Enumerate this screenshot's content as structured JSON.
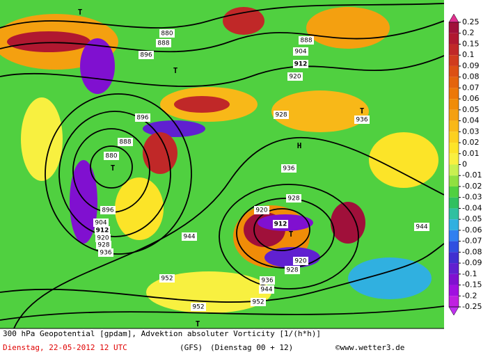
{
  "colorbar": {
    "levels": [
      0.25,
      0.2,
      0.15,
      0.1,
      0.09,
      0.08,
      0.07,
      0.06,
      0.05,
      0.04,
      0.03,
      0.02,
      0.01,
      0,
      -0.01,
      -0.02,
      -0.03,
      -0.04,
      -0.05,
      -0.06,
      -0.07,
      -0.08,
      -0.09,
      -0.1,
      -0.15,
      -0.2,
      -0.25
    ],
    "colors": [
      "#a0103a",
      "#b01830",
      "#c02828",
      "#d03c1e",
      "#dc5014",
      "#e4640c",
      "#ec7808",
      "#f08c08",
      "#f4a010",
      "#f8b818",
      "#fcd020",
      "#fce428",
      "#f8f040",
      "#c8f050",
      "#90e040",
      "#50d040",
      "#30c060",
      "#30c0a0",
      "#30b0e0",
      "#3080f0",
      "#3050e0",
      "#4030d0",
      "#6020d0",
      "#8010d0",
      "#a010e0",
      "#c020e0"
    ],
    "over_color": "#e0308f",
    "under_color": "#c030f0"
  },
  "map": {
    "contour_labels": [
      "880",
      "888",
      "896",
      "896",
      "880",
      "888",
      "896",
      "904",
      "912",
      "920",
      "928",
      "936",
      "944",
      "952",
      "888",
      "904",
      "912",
      "920",
      "928",
      "936",
      "920",
      "912",
      "920",
      "928",
      "936",
      "944",
      "952",
      "952",
      "928",
      "936",
      "944"
    ],
    "pressure_centers": [
      "T",
      "T",
      "T",
      "T",
      "T",
      "H",
      "T"
    ]
  },
  "footer": {
    "title": "300 hPa Geopotential [gpdam], Advektion absoluter Vorticity [1/(h*h)]",
    "date": "Dienstag, 22-05-2012  12 UTC",
    "model": "(GFS)",
    "run": "(Dienstag 00 + 12)",
    "credit": "©www.wetter3.de"
  }
}
